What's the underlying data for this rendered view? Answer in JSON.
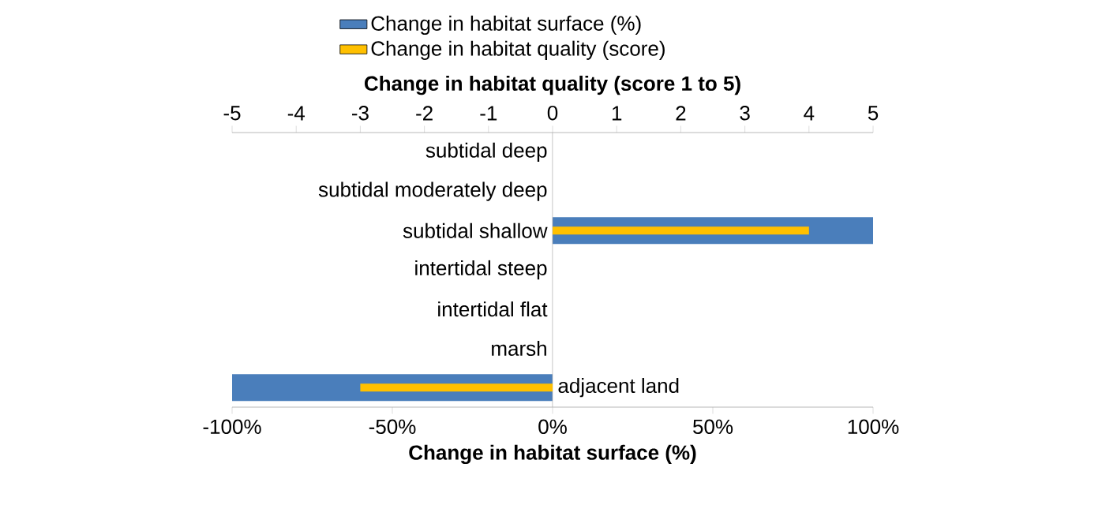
{
  "chart_data": {
    "type": "bar",
    "orientation": "horizontal",
    "categories": [
      "subtidal deep",
      "subtidal moderately deep",
      "subtidal shallow",
      "intertidal steep",
      "intertidal flat",
      "marsh",
      "adjacent land"
    ],
    "series": [
      {
        "name": "Change in habitat surface (%)",
        "color": "#4a7ebb",
        "values": [
          null,
          null,
          100,
          null,
          null,
          null,
          -100
        ]
      },
      {
        "name": "Change in habitat quality (score)",
        "color": "#ffc000",
        "axis": "x2",
        "values": [
          null,
          null,
          4,
          null,
          null,
          null,
          -3
        ]
      }
    ],
    "xlabel": "Change in habitat surface (%)",
    "x2label": "Change in habitat quality (score 1 to 5)",
    "xlim": [
      -100,
      100
    ],
    "xticks": [
      {
        "value": -100,
        "label": "-100%"
      },
      {
        "value": -50,
        "label": "-50%"
      },
      {
        "value": 0,
        "label": "0%"
      },
      {
        "value": 50,
        "label": "50%"
      },
      {
        "value": 100,
        "label": "100%"
      }
    ],
    "x2lim": [
      -5,
      5
    ],
    "x2ticks": [
      -5,
      -4,
      -3,
      -2,
      -1,
      0,
      1,
      2,
      3,
      4,
      5
    ],
    "legend": "top left",
    "grid": false
  }
}
